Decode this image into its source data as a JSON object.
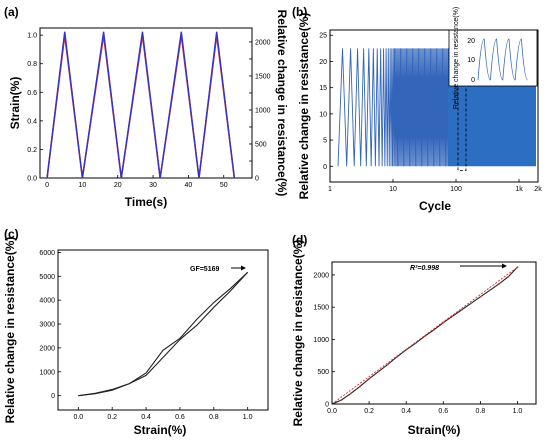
{
  "chart_data": [
    {
      "panel": "(a)",
      "type": "line",
      "xlabel": "Time(s)",
      "ylabel": "Strain(%)",
      "y2label": "Relative change in resistance(%)",
      "xlim": [
        -2,
        58
      ],
      "ylim": [
        0,
        1.05
      ],
      "y2lim": [
        0,
        2205
      ],
      "xticks": [
        "0",
        "10",
        "20",
        "30",
        "40",
        "50"
      ],
      "yticks": [
        "0.0",
        "0.2",
        "0.4",
        "0.6",
        "0.8",
        "1.0"
      ],
      "y2ticks": [
        "0",
        "500",
        "1000",
        "1500",
        "2000"
      ],
      "y2ticks_minor": [
        "250",
        "750",
        "1250",
        "1750"
      ],
      "series": [
        {
          "axis": "left",
          "color": "#cc3333",
          "x": [
            0,
            5,
            10,
            16,
            21,
            27,
            32,
            38,
            43,
            48,
            53
          ],
          "y": [
            0,
            1.0,
            0,
            1.0,
            0,
            1.0,
            0,
            1.0,
            0,
            1.0,
            0
          ]
        },
        {
          "axis": "right",
          "color": "#3333cc",
          "x": [
            0,
            5,
            10,
            16,
            21,
            27,
            32,
            38,
            43,
            48,
            53
          ],
          "y": [
            0,
            2150,
            0,
            2150,
            0,
            2150,
            0,
            2150,
            0,
            2150,
            0
          ]
        }
      ]
    },
    {
      "panel": "(b)",
      "type": "line",
      "xscale": "log",
      "xlabel": "Cycle",
      "ylabel": "Relative change in resistance(%)",
      "xlim": [
        1,
        2000
      ],
      "ylim": [
        -3,
        26
      ],
      "xticks": [
        "1",
        "10",
        "100",
        "1k",
        "2k"
      ],
      "yticks": [
        "0",
        "5",
        "10",
        "15",
        "20",
        "25"
      ],
      "peak": 22.5,
      "color": "#3366bb",
      "inset": {
        "ylabel": "Relative change in resistance(%)",
        "yticks": [
          "0",
          "10",
          "20"
        ],
        "peaks": 4
      }
    },
    {
      "panel": "(c)",
      "type": "line",
      "xlabel": "Strain(%)",
      "ylabel": "Relative change in resistance(%)",
      "xlim": [
        -0.12,
        1.12
      ],
      "ylim": [
        -600,
        6100
      ],
      "xticks": [
        "0.0",
        "0.2",
        "0.4",
        "0.6",
        "0.8",
        "1.0"
      ],
      "yticks": [
        "0",
        "1000",
        "2000",
        "3000",
        "4000",
        "5000",
        "6000"
      ],
      "annotation": "GF=5169",
      "series": [
        {
          "x": [
            0,
            0.1,
            0.2,
            0.3,
            0.4,
            0.5,
            0.6,
            0.7,
            0.8,
            0.9,
            1.0
          ],
          "y": [
            0,
            100,
            260,
            500,
            850,
            1600,
            2350,
            2950,
            3700,
            4400,
            5169
          ]
        },
        {
          "x": [
            0,
            0.1,
            0.2,
            0.3,
            0.4,
            0.5,
            0.6,
            0.7,
            0.8,
            0.9,
            1.0
          ],
          "y": [
            0,
            80,
            230,
            500,
            950,
            1900,
            2400,
            3200,
            3900,
            4500,
            5169
          ]
        }
      ]
    },
    {
      "panel": "(d)",
      "type": "scatter",
      "xlabel": "Strain(%)",
      "ylabel": "Relative change in resistance(%)",
      "xlim": [
        0,
        1.1
      ],
      "ylim": [
        0,
        2200
      ],
      "xticks": [
        "0.0",
        "0.2",
        "0.4",
        "0.6",
        "0.8",
        "1.0"
      ],
      "yticks": [
        "0",
        "500",
        "1000",
        "1500",
        "2000"
      ],
      "annotation": "R²=0.998",
      "fit_line": [
        [
          0,
          0
        ],
        [
          1.0,
          2120
        ]
      ],
      "x": [
        0,
        0.05,
        0.1,
        0.15,
        0.2,
        0.25,
        0.3,
        0.35,
        0.4,
        0.45,
        0.5,
        0.55,
        0.6,
        0.65,
        0.7,
        0.75,
        0.8,
        0.85,
        0.9,
        0.95,
        1.0
      ],
      "y": [
        0,
        60,
        160,
        270,
        390,
        500,
        610,
        730,
        840,
        940,
        1050,
        1150,
        1260,
        1360,
        1460,
        1560,
        1660,
        1760,
        1860,
        1970,
        2120
      ]
    }
  ]
}
